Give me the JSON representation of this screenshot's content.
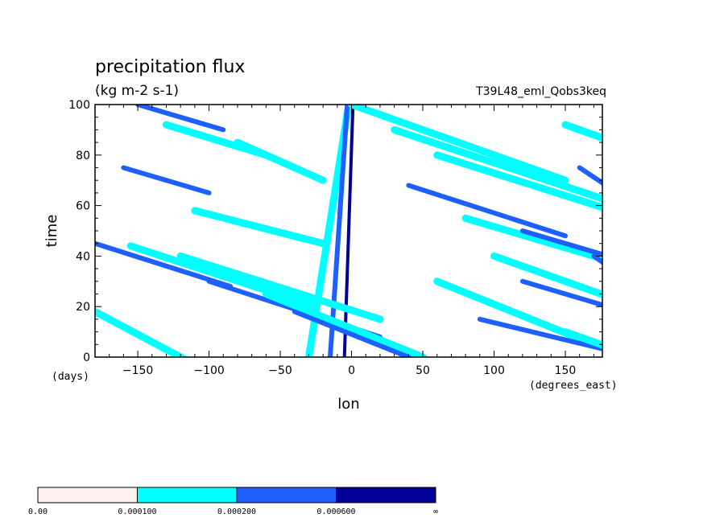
{
  "chart_data": {
    "type": "heatmap",
    "title": "precipitation flux",
    "units_label": "(kg m-2 s-1)",
    "experiment": "T39L48_eml_Qobs3keq",
    "xlabel": "lon",
    "ylabel": "time",
    "xunits": "(degrees_east)",
    "yunits": "(days)",
    "xlim": [
      -180,
      176
    ],
    "ylim": [
      0,
      100
    ],
    "xticks": [
      -150,
      -100,
      -50,
      0,
      50,
      100,
      150
    ],
    "yticks": [
      0,
      20,
      40,
      60,
      80,
      100
    ],
    "contour_levels": [
      "0.00",
      "0.000100",
      "0.000200",
      "0.000600",
      "∞"
    ],
    "level_colors": [
      "#fff0f0",
      "#00ffff",
      "#1e5fff",
      "#000098"
    ],
    "bands": [
      {
        "lon": -30,
        "t0": 0,
        "t1": 100,
        "width": 28,
        "level": 1
      },
      {
        "lon": -15,
        "t0": 0,
        "t1": 100,
        "width": 12,
        "level": 2
      },
      {
        "lon": -5,
        "t0": 0,
        "t1": 100,
        "width": 6,
        "level": 3
      },
      {
        "lon": -180,
        "t0": 18,
        "t1": -3,
        "width": 70,
        "level": 1
      },
      {
        "lon": -155,
        "t0": 44,
        "t1": 20,
        "width": 130,
        "level": 1
      },
      {
        "lon": -180,
        "t0": 45,
        "t1": 28,
        "width": 95,
        "level": 2
      },
      {
        "lon": -120,
        "t0": 40,
        "t1": 15,
        "width": 140,
        "level": 1
      },
      {
        "lon": -100,
        "t0": 30,
        "t1": 8,
        "width": 120,
        "level": 2
      },
      {
        "lon": -60,
        "t0": 25,
        "t1": 0,
        "width": 110,
        "level": 1
      },
      {
        "lon": -40,
        "t0": 18,
        "t1": 0,
        "width": 80,
        "level": 2
      },
      {
        "lon": -150,
        "t0": 100,
        "t1": 90,
        "width": 60,
        "level": 2
      },
      {
        "lon": -130,
        "t0": 92,
        "t1": 80,
        "width": 70,
        "level": 1
      },
      {
        "lon": -160,
        "t0": 75,
        "t1": 65,
        "width": 60,
        "level": 2
      },
      {
        "lon": -110,
        "t0": 58,
        "t1": 45,
        "width": 90,
        "level": 1
      },
      {
        "lon": -80,
        "t0": 85,
        "t1": 70,
        "width": 60,
        "level": 1
      },
      {
        "lon": 0,
        "t0": 100,
        "t1": 70,
        "width": 150,
        "level": 1
      },
      {
        "lon": 30,
        "t0": 90,
        "t1": 62,
        "width": 150,
        "level": 1
      },
      {
        "lon": 60,
        "t0": 80,
        "t1": 55,
        "width": 140,
        "level": 1
      },
      {
        "lon": 40,
        "t0": 68,
        "t1": 48,
        "width": 110,
        "level": 2
      },
      {
        "lon": 80,
        "t0": 55,
        "t1": 35,
        "width": 120,
        "level": 1
      },
      {
        "lon": 120,
        "t0": 50,
        "t1": 40,
        "width": 60,
        "level": 2
      },
      {
        "lon": 100,
        "t0": 40,
        "t1": 18,
        "width": 110,
        "level": 1
      },
      {
        "lon": 120,
        "t0": 30,
        "t1": 20,
        "width": 60,
        "level": 2
      },
      {
        "lon": 60,
        "t0": 30,
        "t1": 5,
        "width": 110,
        "level": 1
      },
      {
        "lon": 90,
        "t0": 15,
        "t1": 0,
        "width": 110,
        "level": 2
      },
      {
        "lon": 150,
        "t0": 10,
        "t1": 0,
        "width": 50,
        "level": 1
      },
      {
        "lon": 150,
        "t0": 92,
        "t1": 80,
        "width": 60,
        "level": 1
      },
      {
        "lon": 160,
        "t0": 75,
        "t1": 60,
        "width": 40,
        "level": 2
      },
      {
        "lon": 170,
        "t0": 40,
        "t1": 32,
        "width": 20,
        "level": 2
      }
    ]
  }
}
